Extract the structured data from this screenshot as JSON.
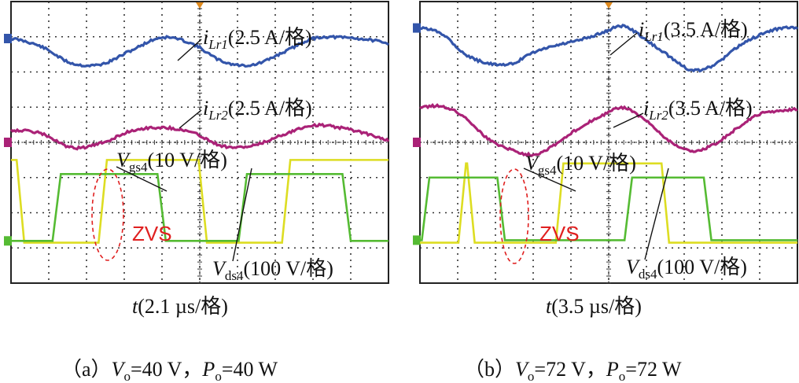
{
  "chart_data": [
    {
      "type": "line",
      "panel": "a",
      "caption": {
        "open": "（a）",
        "v_sym": "V",
        "v_sub": "o",
        "v_val": "=40 V，",
        "p_sym": "P",
        "p_sub": "o",
        "p_val": "=40 W"
      },
      "xlabel": {
        "sym": "t",
        "unit": "(2.1 µs/格)"
      },
      "traces": {
        "ilr1": {
          "name": "iLr1",
          "sym": "i",
          "sub": "Lr1",
          "scale": "(2.5 A/格)",
          "color": "#3355aa",
          "points": [
            [
              0,
              2.95
            ],
            [
              0.8,
              2.72
            ],
            [
              1.6,
              2.25
            ],
            [
              2.4,
              2.22
            ],
            [
              3.2,
              2.62
            ],
            [
              4.0,
              2.98
            ],
            [
              4.8,
              2.8
            ],
            [
              5.6,
              2.3
            ],
            [
              6.4,
              2.2
            ],
            [
              7.2,
              2.55
            ],
            [
              8.0,
              2.95
            ],
            [
              8.8,
              2.98
            ],
            [
              9.6,
              2.9
            ],
            [
              10,
              2.8
            ]
          ]
        },
        "ilr2": {
          "name": "iLr2",
          "sym": "i",
          "sub": "Lr2",
          "scale": "(2.5 A/格)",
          "color": "#aa2277",
          "points": [
            [
              0,
              0.35
            ],
            [
              0.8,
              0.25
            ],
            [
              1.6,
              -0.15
            ],
            [
              2.4,
              -0.02
            ],
            [
              3.2,
              0.33
            ],
            [
              4.0,
              0.42
            ],
            [
              4.8,
              0.28
            ],
            [
              5.6,
              -0.1
            ],
            [
              6.4,
              -0.1
            ],
            [
              7.2,
              0.22
            ],
            [
              8.0,
              0.48
            ],
            [
              8.8,
              0.4
            ],
            [
              9.6,
              0.2
            ],
            [
              10,
              0.05
            ]
          ]
        },
        "vgs4": {
          "name": "Vgs4",
          "sym": "V",
          "sub": "gs4",
          "scale": "(10 V/格)",
          "color": "#55bb33",
          "high": -0.9,
          "low": -2.8,
          "edges": [
            1.1,
            1.32,
            3.88,
            4.1,
            6.03,
            6.25,
            8.78,
            9.0
          ]
        },
        "vds4": {
          "name": "Vds4",
          "sym": "V",
          "sub": "ds4",
          "scale": "(100 V/格)",
          "color": "#dddd22",
          "high": -0.5,
          "low": -2.85,
          "edges": [
            0.15,
            0.35,
            2.32,
            2.54,
            4.97,
            5.19,
            7.18,
            7.4
          ]
        }
      },
      "annotation": "ZVS"
    },
    {
      "type": "line",
      "panel": "b",
      "caption": {
        "open": "（b）",
        "v_sym": "V",
        "v_sub": "o",
        "v_val": "=72 V，",
        "p_sym": "P",
        "p_sub": "o",
        "p_val": "=72 W"
      },
      "xlabel": {
        "sym": "t",
        "unit": "(3.5 µs/格)"
      },
      "traces": {
        "ilr1": {
          "name": "iLr1",
          "sym": "i",
          "sub": "Lr1",
          "scale": "(3.5 A/格)",
          "color": "#3355aa",
          "points": [
            [
              0,
              3.25
            ],
            [
              0.6,
              3.08
            ],
            [
              1.2,
              2.5
            ],
            [
              1.8,
              2.25
            ],
            [
              2.4,
              2.22
            ],
            [
              3.0,
              2.55
            ],
            [
              3.6,
              2.75
            ],
            [
              4.2,
              2.9
            ],
            [
              4.8,
              3.1
            ],
            [
              5.4,
              3.3
            ],
            [
              6.0,
              2.9
            ],
            [
              6.6,
              2.45
            ],
            [
              7.2,
              2.05
            ],
            [
              7.8,
              2.2
            ],
            [
              8.4,
              2.7
            ],
            [
              9.0,
              3.05
            ],
            [
              9.6,
              3.25
            ],
            [
              10,
              3.25
            ]
          ]
        },
        "ilr2": {
          "name": "iLr2",
          "sym": "i",
          "sub": "Lr2",
          "scale": "(3.5 A/格)",
          "color": "#aa2277",
          "points": [
            [
              0,
              1.0
            ],
            [
              0.6,
              1.02
            ],
            [
              1.2,
              0.7
            ],
            [
              1.8,
              0.1
            ],
            [
              2.4,
              -0.2
            ],
            [
              3.0,
              -0.35
            ],
            [
              3.6,
              -0.05
            ],
            [
              4.2,
              0.4
            ],
            [
              4.8,
              0.75
            ],
            [
              5.4,
              0.98
            ],
            [
              6.0,
              0.6
            ],
            [
              6.6,
              0.05
            ],
            [
              7.2,
              -0.25
            ],
            [
              7.8,
              -0.05
            ],
            [
              8.4,
              0.4
            ],
            [
              9.0,
              0.8
            ],
            [
              9.6,
              0.9
            ],
            [
              10,
              0.95
            ]
          ]
        },
        "vgs4": {
          "name": "Vgs4",
          "sym": "V",
          "sub": "gs4",
          "scale": "(10 V/格)",
          "color": "#55bb33",
          "high": -1.0,
          "low": -2.78,
          "edges": [
            0.05,
            0.25,
            2.05,
            2.25,
            5.42,
            5.62,
            7.52,
            7.72
          ]
        },
        "vds4": {
          "name": "Vds4",
          "sym": "V",
          "sub": "ds4",
          "scale": "(100 V/格)",
          "color": "#dddd22",
          "high": -0.6,
          "low": -2.85,
          "edges": [
            1.02,
            1.22,
            1.25,
            1.45,
            3.6,
            3.8,
            6.4,
            6.6
          ]
        }
      },
      "annotation": "ZVS"
    }
  ]
}
